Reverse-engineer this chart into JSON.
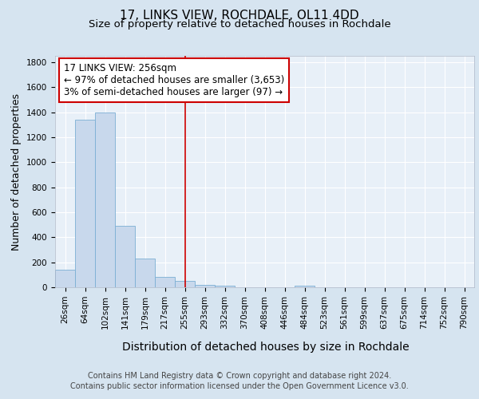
{
  "title": "17, LINKS VIEW, ROCHDALE, OL11 4DD",
  "subtitle": "Size of property relative to detached houses in Rochdale",
  "xlabel": "Distribution of detached houses by size in Rochdale",
  "ylabel": "Number of detached properties",
  "categories": [
    "26sqm",
    "64sqm",
    "102sqm",
    "141sqm",
    "179sqm",
    "217sqm",
    "255sqm",
    "293sqm",
    "332sqm",
    "370sqm",
    "408sqm",
    "446sqm",
    "484sqm",
    "523sqm",
    "561sqm",
    "599sqm",
    "637sqm",
    "675sqm",
    "714sqm",
    "752sqm",
    "790sqm"
  ],
  "values": [
    140,
    1340,
    1400,
    490,
    230,
    85,
    50,
    20,
    10,
    0,
    0,
    0,
    10,
    0,
    0,
    0,
    0,
    0,
    0,
    0,
    0
  ],
  "bar_color": "#c8d8ec",
  "bar_edge_color": "#7bafd4",
  "background_color": "#d6e4f0",
  "plot_background": "#e8f0f8",
  "grid_color": "#ffffff",
  "red_line_index": 6,
  "red_line_color": "#cc0000",
  "annotation_line1": "17 LINKS VIEW: 256sqm",
  "annotation_line2": "← 97% of detached houses are smaller (3,653)",
  "annotation_line3": "3% of semi-detached houses are larger (97) →",
  "annotation_box_color": "#ffffff",
  "annotation_border_color": "#cc0000",
  "ylim": [
    0,
    1850
  ],
  "yticks": [
    0,
    200,
    400,
    600,
    800,
    1000,
    1200,
    1400,
    1600,
    1800
  ],
  "footnote1": "Contains HM Land Registry data © Crown copyright and database right 2024.",
  "footnote2": "Contains public sector information licensed under the Open Government Licence v3.0.",
  "title_fontsize": 11,
  "subtitle_fontsize": 9.5,
  "xlabel_fontsize": 10,
  "ylabel_fontsize": 9,
  "tick_fontsize": 7.5,
  "annotation_fontsize": 8.5,
  "footnote_fontsize": 7
}
